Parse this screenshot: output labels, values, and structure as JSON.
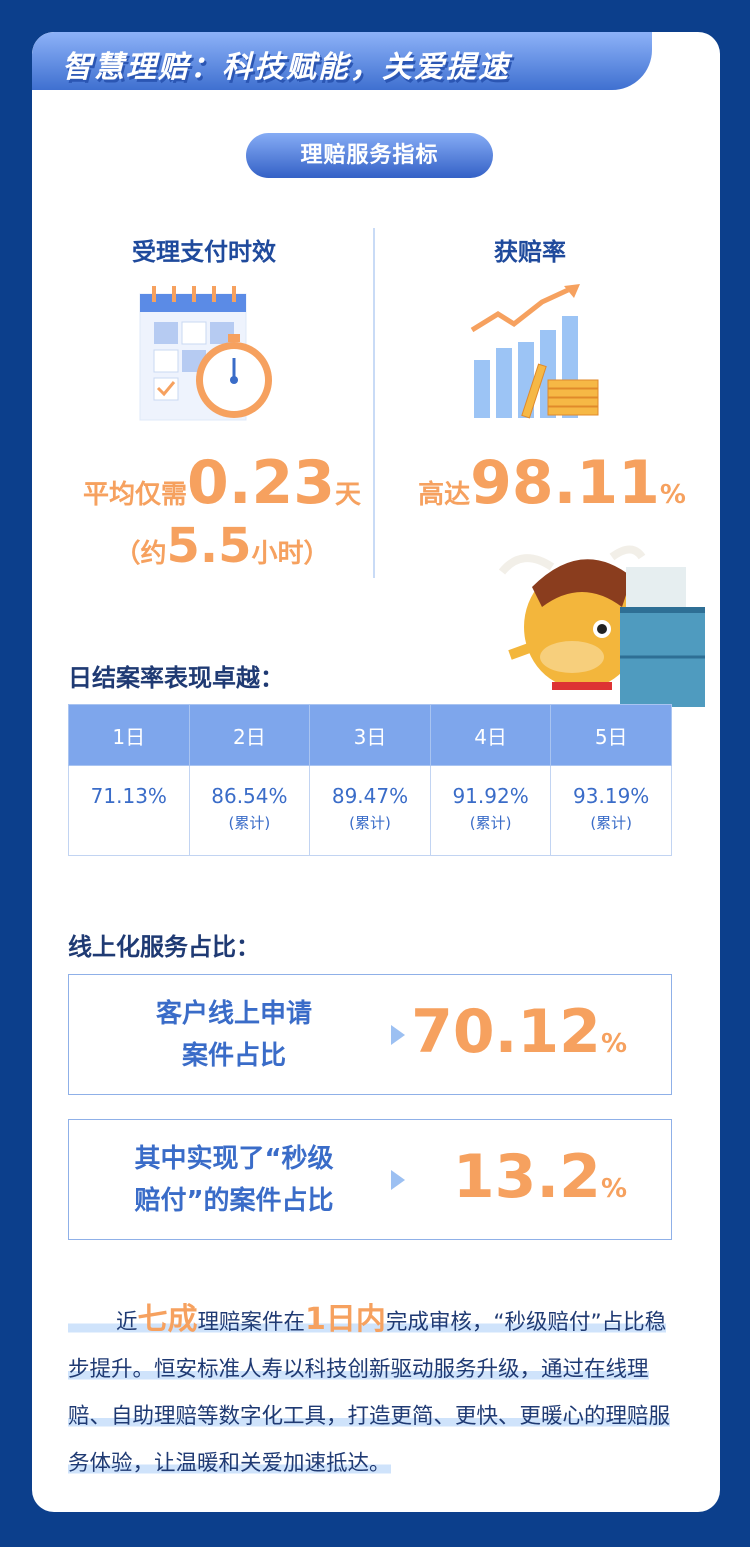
{
  "title": "智慧理赔：科技赋能，关爱提速",
  "section_pill": "理赔服务指标",
  "left": {
    "heading": "受理支付时效",
    "prefix": "平均仅需",
    "value": "0.23",
    "unit": "天",
    "sub_open": "（约",
    "sub_value": "5.5",
    "sub_unit": "小时）",
    "icon": "calendar-stopwatch-icon"
  },
  "right": {
    "heading": "获赔率",
    "prefix": "高达",
    "value": "98.11",
    "unit": "%",
    "icon": "rising-chart-coins-icon"
  },
  "daily": {
    "heading": "日结案率表现卓越：",
    "columns": [
      "1日",
      "2日",
      "3日",
      "4日",
      "5日"
    ],
    "values": [
      "71.13%",
      "86.54%",
      "89.47%",
      "91.92%",
      "93.19%"
    ],
    "notes": [
      "",
      "(累计)",
      "(累计)",
      "(累计)",
      "(累计)"
    ]
  },
  "online": {
    "heading": "线上化服务占比：",
    "items": [
      {
        "label_1": "客户线上申请",
        "label_2": "案件占比",
        "value": "70.12",
        "unit": "%"
      },
      {
        "label_1": "其中实现了“秒级",
        "label_2": "赔付”的案件占比",
        "value": "13.2",
        "unit": "%"
      }
    ]
  },
  "paragraph": {
    "p1": "近",
    "h1": "七成",
    "p2": "理赔案件在",
    "h2": "1日内",
    "p3": "完成审核，“秒级赔付”占比稳步提升。恒安标准人寿以科技创新驱动服务升级，通过在线理赔、自助理赔等数字化工具，打造更简、更快、更暖心的理赔服务体验，让温暖和关爱加速抵达。"
  },
  "colors": {
    "background": "#0c3f8c",
    "accent": "#f6a15f",
    "primary": "#3a6cc8"
  }
}
